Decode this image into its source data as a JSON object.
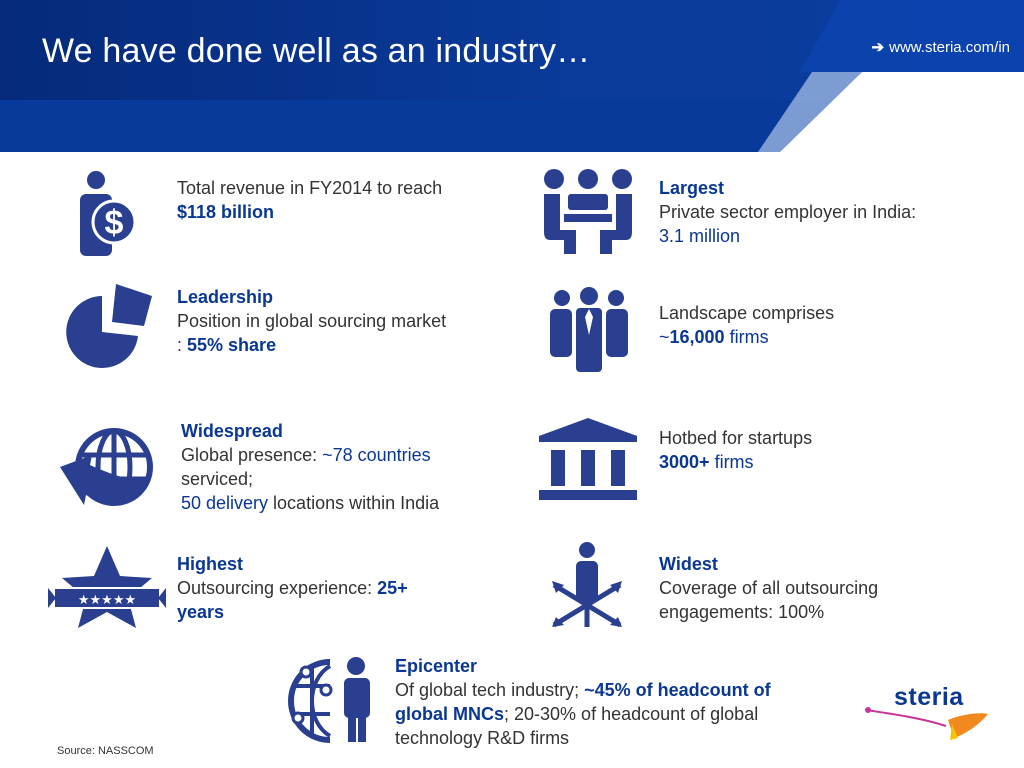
{
  "header": {
    "title": "We have done well as an industry…",
    "url_arrow": "➔",
    "url": "www.steria.com/in"
  },
  "colors": {
    "accent": "#0a3792",
    "header_bg": "#0b3da0",
    "text": "#333333"
  },
  "items": {
    "revenue": {
      "icon": "person-dollar-icon",
      "line1": "Total revenue in FY2014 to reach",
      "value": "$118 billion"
    },
    "leadership": {
      "icon": "pie-chart-icon",
      "heading": "Leadership",
      "line1": "Position in global sourcing market",
      "prefix": ": ",
      "value": "55% share"
    },
    "widespread": {
      "icon": "globe-arrow-icon",
      "heading": "Widespread",
      "line1_prefix": "Global presence: ",
      "line1_value": "~78 countries",
      "line2": "serviced;",
      "line3_value": "50 delivery",
      "line3_suffix": " locations within India"
    },
    "highest": {
      "icon": "star-badge-icon",
      "heading": "Highest",
      "line1": "Outsourcing experience: ",
      "value": "25+",
      "value2": "years"
    },
    "largest": {
      "icon": "meeting-people-icon",
      "heading": "Largest",
      "line1": "Private sector employer in India:",
      "value": "3.1 million"
    },
    "landscape": {
      "icon": "group-people-icon",
      "line1": "Landscape comprises",
      "tilde": "~",
      "value": "16,000",
      "suffix": " firms"
    },
    "startups": {
      "icon": "bank-building-icon",
      "line1": "Hotbed for startups",
      "value": "3000+",
      "suffix": " firms"
    },
    "widest": {
      "icon": "person-arrows-icon",
      "heading": "Widest",
      "line1": "Coverage of all outsourcing",
      "line2": "engagements: 100%"
    },
    "epicenter": {
      "icon": "globe-network-person-icon",
      "heading": "Epicenter",
      "line1_prefix": "Of global tech industry; ",
      "line1_value": "~45% of headcount of",
      "line2_value": "global MNCs",
      "line2_suffix": "; 20-30% of headcount of global",
      "line3": "technology R&D firms"
    }
  },
  "footer": {
    "source": "Source: NASSCOM"
  },
  "logo": {
    "text": "steria"
  }
}
